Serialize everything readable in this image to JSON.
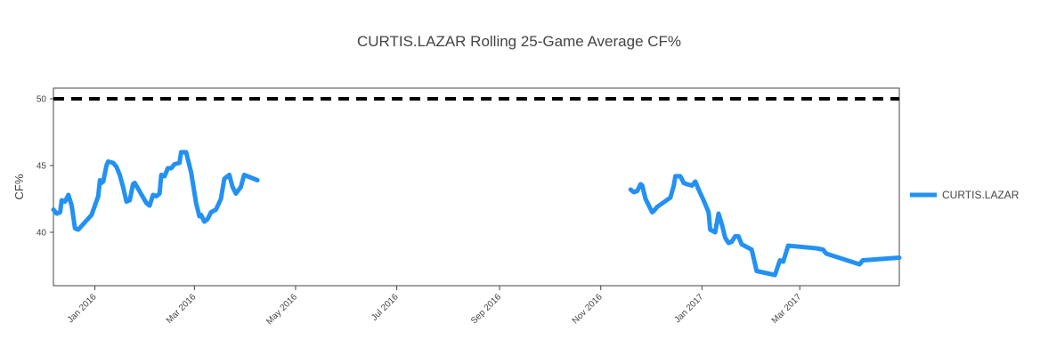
{
  "chart_data": {
    "type": "line",
    "title": "CURTIS.LAZAR Rolling 25-Game Average CF%",
    "xlabel": "",
    "ylabel": "CF%",
    "xlim": [
      "2015-12-07",
      "2017-04-30"
    ],
    "ylim": [
      36.0,
      50.8
    ],
    "y_ticks": [
      40,
      45,
      50
    ],
    "x_ticks": [
      {
        "date": "2016-01-01",
        "label": "Jan 2016"
      },
      {
        "date": "2016-03-01",
        "label": "Mar 2016"
      },
      {
        "date": "2016-05-01",
        "label": "May 2016"
      },
      {
        "date": "2016-07-01",
        "label": "Jul 2016"
      },
      {
        "date": "2016-09-01",
        "label": "Sep 2016"
      },
      {
        "date": "2016-11-01",
        "label": "Nov 2016"
      },
      {
        "date": "2017-01-01",
        "label": "Jan 2017"
      },
      {
        "date": "2017-03-01",
        "label": "Mar 2017"
      }
    ],
    "grid": false,
    "legend_position": "right",
    "reference_line": {
      "y": 50,
      "style": "dashed",
      "color": "#000000"
    },
    "series": [
      {
        "name": "CURTIS.LAZAR",
        "color": "#2391f3",
        "segments": [
          [
            [
              "2015-12-07",
              41.7
            ],
            [
              "2015-12-09",
              41.4
            ],
            [
              "2015-12-11",
              41.5
            ],
            [
              "2015-12-12",
              42.4
            ],
            [
              "2015-12-14",
              42.3
            ],
            [
              "2015-12-16",
              42.8
            ],
            [
              "2015-12-18",
              42.0
            ],
            [
              "2015-12-20",
              40.3
            ],
            [
              "2015-12-22",
              40.2
            ],
            [
              "2015-12-30",
              41.3
            ],
            [
              "2016-01-03",
              42.7
            ],
            [
              "2016-01-04",
              43.9
            ],
            [
              "2016-01-05",
              43.7
            ],
            [
              "2016-01-06",
              43.8
            ],
            [
              "2016-01-08",
              45.0
            ],
            [
              "2016-01-09",
              45.3
            ],
            [
              "2016-01-12",
              45.2
            ],
            [
              "2016-01-14",
              44.9
            ],
            [
              "2016-01-16",
              44.3
            ],
            [
              "2016-01-18",
              43.4
            ],
            [
              "2016-01-20",
              42.3
            ],
            [
              "2016-01-22",
              42.4
            ],
            [
              "2016-01-24",
              43.6
            ],
            [
              "2016-01-25",
              43.7
            ],
            [
              "2016-02-01",
              42.2
            ],
            [
              "2016-02-03",
              42.0
            ],
            [
              "2016-02-05",
              42.8
            ],
            [
              "2016-02-07",
              42.7
            ],
            [
              "2016-02-09",
              42.9
            ],
            [
              "2016-02-10",
              44.3
            ],
            [
              "2016-02-12",
              44.2
            ],
            [
              "2016-02-14",
              44.8
            ],
            [
              "2016-02-16",
              44.8
            ],
            [
              "2016-02-18",
              45.1
            ],
            [
              "2016-02-21",
              45.2
            ],
            [
              "2016-02-22",
              46.0
            ],
            [
              "2016-02-25",
              46.0
            ],
            [
              "2016-02-28",
              44.5
            ],
            [
              "2016-03-02",
              42.2
            ],
            [
              "2016-03-04",
              41.2
            ],
            [
              "2016-03-05",
              41.3
            ],
            [
              "2016-03-07",
              40.8
            ],
            [
              "2016-03-09",
              41.0
            ],
            [
              "2016-03-11",
              41.5
            ],
            [
              "2016-03-14",
              41.7
            ],
            [
              "2016-03-17",
              42.5
            ],
            [
              "2016-03-19",
              44.0
            ],
            [
              "2016-03-22",
              44.3
            ],
            [
              "2016-03-24",
              43.4
            ],
            [
              "2016-03-26",
              42.9
            ],
            [
              "2016-03-29",
              43.4
            ],
            [
              "2016-03-31",
              44.3
            ],
            [
              "2016-04-08",
              43.9
            ]
          ],
          [
            [
              "2016-11-19",
              43.2
            ],
            [
              "2016-11-21",
              43.0
            ],
            [
              "2016-11-23",
              43.1
            ],
            [
              "2016-11-25",
              43.6
            ],
            [
              "2016-11-26",
              43.5
            ],
            [
              "2016-11-28",
              42.5
            ],
            [
              "2016-11-30",
              42.0
            ],
            [
              "2016-12-02",
              41.5
            ],
            [
              "2016-12-03",
              41.6
            ],
            [
              "2016-12-05",
              41.9
            ],
            [
              "2016-12-13",
              42.6
            ],
            [
              "2016-12-15",
              43.5
            ],
            [
              "2016-12-16",
              44.2
            ],
            [
              "2016-12-19",
              44.2
            ],
            [
              "2016-12-21",
              43.7
            ],
            [
              "2016-12-23",
              43.6
            ],
            [
              "2016-12-26",
              43.5
            ],
            [
              "2016-12-28",
              43.8
            ],
            [
              "2016-12-30",
              43.2
            ],
            [
              "2017-01-02",
              42.4
            ],
            [
              "2017-01-05",
              41.5
            ],
            [
              "2017-01-06",
              40.2
            ],
            [
              "2017-01-09",
              40.0
            ],
            [
              "2017-01-11",
              41.4
            ],
            [
              "2017-01-13",
              40.6
            ],
            [
              "2017-01-15",
              39.6
            ],
            [
              "2017-01-17",
              39.2
            ],
            [
              "2017-01-19",
              39.3
            ],
            [
              "2017-01-21",
              39.7
            ],
            [
              "2017-01-23",
              39.7
            ],
            [
              "2017-01-25",
              39.1
            ],
            [
              "2017-01-31",
              38.7
            ],
            [
              "2017-02-03",
              37.1
            ],
            [
              "2017-02-14",
              36.8
            ],
            [
              "2017-02-17",
              37.9
            ],
            [
              "2017-02-19",
              37.8
            ],
            [
              "2017-02-22",
              39.0
            ],
            [
              "2017-03-11",
              38.8
            ],
            [
              "2017-03-15",
              38.7
            ],
            [
              "2017-03-17",
              38.4
            ],
            [
              "2017-04-06",
              37.6
            ],
            [
              "2017-04-08",
              37.9
            ],
            [
              "2017-04-30",
              38.1
            ]
          ]
        ]
      }
    ]
  }
}
